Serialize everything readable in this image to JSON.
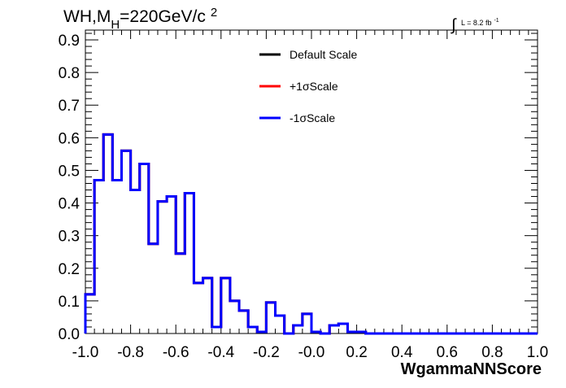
{
  "chart_data": {
    "type": "line",
    "title": {
      "main_a": "WH,M",
      "main_sub": "H",
      "main_b": "=220GeV/c",
      "main_sup": "2"
    },
    "lumi": {
      "integral": "∫",
      "text": "L = 8.2 fb",
      "sup": "-1"
    },
    "xlabel": "WgammaNNScore",
    "ylabel": "",
    "xlim": [
      -1.0,
      1.0
    ],
    "ylim": [
      0.0,
      0.93
    ],
    "x_ticks": [
      -1.0,
      -0.8,
      -0.6,
      -0.4,
      -0.2,
      0.0,
      0.2,
      0.4,
      0.6,
      0.8,
      1.0
    ],
    "x_tick_labels": [
      "-1.0",
      "-0.8",
      "-0.6",
      "-0.4",
      "-0.2",
      "-0.0",
      "0.2",
      "0.4",
      "0.6",
      "0.8",
      "1.0"
    ],
    "y_ticks": [
      0.0,
      0.1,
      0.2,
      0.3,
      0.4,
      0.5,
      0.6,
      0.7,
      0.8,
      0.9
    ],
    "y_tick_labels": [
      "0.0",
      "0.1",
      "0.2",
      "0.3",
      "0.4",
      "0.5",
      "0.6",
      "0.7",
      "0.8",
      "0.9"
    ],
    "bin_edges": [
      -1.0,
      -0.96,
      -0.92,
      -0.88,
      -0.84,
      -0.8,
      -0.76,
      -0.72,
      -0.68,
      -0.64,
      -0.6,
      -0.56,
      -0.52,
      -0.48,
      -0.44,
      -0.4,
      -0.36,
      -0.32,
      -0.28,
      -0.24,
      -0.2,
      -0.16,
      -0.12,
      -0.08,
      -0.04,
      0.0,
      0.04,
      0.08,
      0.12,
      0.16,
      0.2,
      0.24,
      0.28,
      0.32,
      0.36,
      0.4,
      0.44,
      0.48,
      0.52,
      0.56,
      0.6,
      0.64,
      0.68,
      0.72,
      0.76,
      0.8,
      0.84,
      0.88,
      0.92,
      0.96,
      1.0
    ],
    "series": [
      {
        "name": "Default Scale",
        "color": "#000000",
        "values": [
          0.12,
          0.47,
          0.61,
          0.47,
          0.56,
          0.44,
          0.52,
          0.275,
          0.405,
          0.42,
          0.245,
          0.43,
          0.155,
          0.17,
          0.02,
          0.17,
          0.1,
          0.07,
          0.02,
          0.005,
          0.095,
          0.055,
          0.0,
          0.025,
          0.06,
          0.005,
          0.0,
          0.025,
          0.03,
          0.005,
          0.005,
          0.0,
          0.0,
          0.0,
          0.0,
          0.0,
          0.0,
          0.0,
          0.0,
          0.0,
          0.0,
          0.0,
          0.0,
          0.0,
          0.0,
          0.0,
          0.0,
          0.0,
          0.0,
          0.0
        ]
      },
      {
        "name": "+1σScale",
        "color": "#ff0000",
        "values": [
          0.12,
          0.47,
          0.61,
          0.47,
          0.56,
          0.44,
          0.52,
          0.275,
          0.405,
          0.42,
          0.245,
          0.43,
          0.155,
          0.17,
          0.02,
          0.17,
          0.1,
          0.07,
          0.02,
          0.005,
          0.095,
          0.055,
          0.0,
          0.025,
          0.06,
          0.005,
          0.0,
          0.025,
          0.03,
          0.005,
          0.005,
          0.0,
          0.0,
          0.0,
          0.0,
          0.0,
          0.0,
          0.0,
          0.0,
          0.0,
          0.0,
          0.0,
          0.0,
          0.0,
          0.0,
          0.0,
          0.0,
          0.0,
          0.0,
          0.0
        ]
      },
      {
        "name": "-1σScale",
        "color": "#0000ff",
        "values": [
          0.12,
          0.47,
          0.61,
          0.47,
          0.56,
          0.44,
          0.52,
          0.275,
          0.405,
          0.42,
          0.245,
          0.43,
          0.155,
          0.17,
          0.02,
          0.17,
          0.1,
          0.07,
          0.02,
          0.005,
          0.095,
          0.055,
          0.0,
          0.025,
          0.06,
          0.005,
          0.0,
          0.025,
          0.03,
          0.005,
          0.005,
          0.0,
          0.0,
          0.0,
          0.0,
          0.0,
          0.0,
          0.0,
          0.0,
          0.0,
          0.0,
          0.0,
          0.0,
          0.0,
          0.0,
          0.0,
          0.0,
          0.0,
          0.0,
          0.0
        ]
      }
    ],
    "legend_position": "top-center",
    "grid": false
  }
}
